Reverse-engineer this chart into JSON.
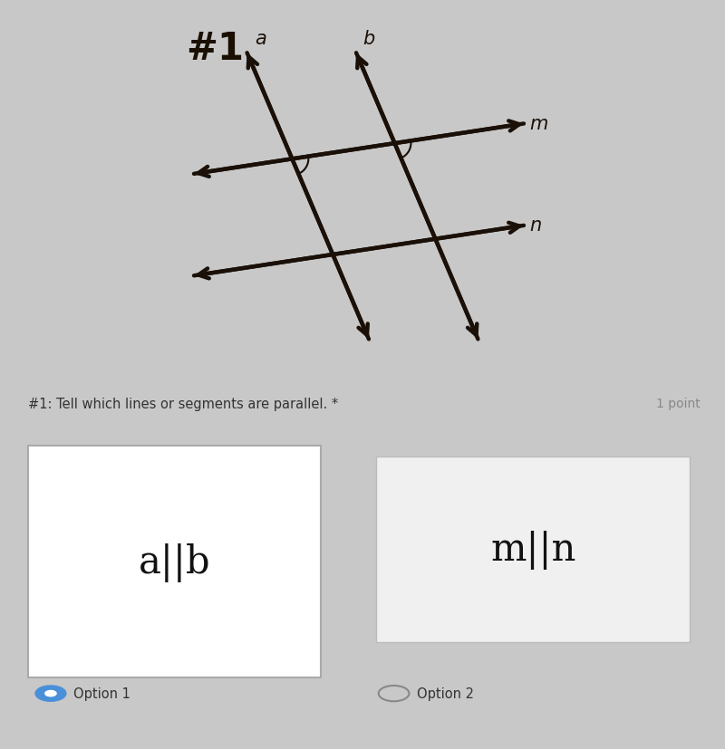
{
  "title": "#1",
  "title_color": "#1a0f00",
  "background_top": "#d4b896",
  "background_bottom": "#e8e8e8",
  "line_color": "#1a1008",
  "line_width": 3.2,
  "question_text": "#1: Tell which lines or segments are parallel. *",
  "point_text": "1 point",
  "option1_text": "a||b",
  "option2_text": "m||n",
  "option1_label": "Option 1",
  "option2_label": "Option 2",
  "fig_width": 8.0,
  "fig_height": 8.28,
  "top_bg": "#d0b090",
  "bottom_bg": "#e4e4e4",
  "outer_bg": "#c8c8c8"
}
